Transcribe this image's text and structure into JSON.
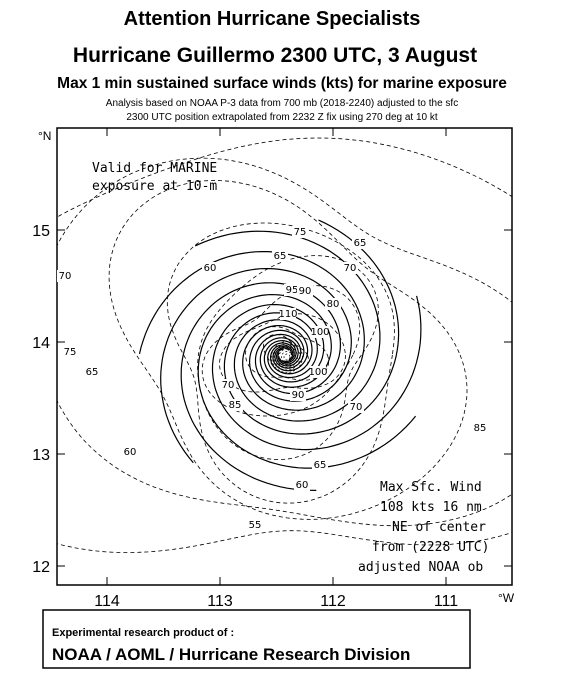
{
  "header": {
    "title": "Attention Hurricane Specialists",
    "headline": "Hurricane Guillermo  2300 UTC, 3 August",
    "subtitle": "Max 1 min sustained surface winds (kts) for marine exposure",
    "notes": [
      "Analysis based on  NOAA P-3  data from 700  mb (2018-2240) adjusted to the sfc",
      "2300 UTC position extrapolated from 2232 Z fix using 270 deg at 10 kt"
    ]
  },
  "map": {
    "lat_unit": "°N",
    "lon_unit": "°W",
    "lat_labels": [
      "15",
      "14",
      "13",
      "12"
    ],
    "lon_labels": [
      "114",
      "113",
      "112",
      "111"
    ],
    "contour_labels": [
      "75",
      "65",
      "70",
      "60",
      "65",
      "70",
      "95",
      "90",
      "80",
      "110",
      "100",
      "75",
      "65",
      "100",
      "90",
      "70",
      "85",
      "70",
      "60",
      "65",
      "60",
      "85",
      "55"
    ],
    "valid_note": [
      "Valid for MARINE",
      "exposure at 10-m"
    ],
    "max_wind_note": [
      "Max Sfc. Wind",
      "108 kts 16 nm",
      "NE of center",
      "from (2228 UTC)",
      "adjusted  NOAA ob"
    ]
  },
  "footer": {
    "line1": "Experimental research product of :",
    "line2": "NOAA / AOML / Hurricane Research Division"
  }
}
